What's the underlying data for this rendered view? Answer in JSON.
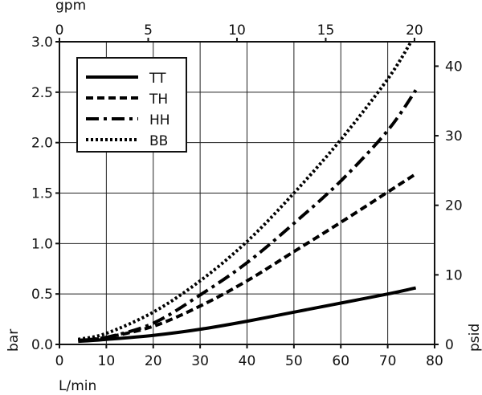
{
  "chart_data": {
    "type": "line",
    "title": "",
    "xlabel": "L/min",
    "ylabel": "bar",
    "x2label": "gpm",
    "y2label": "psid",
    "xlim": [
      0,
      80
    ],
    "ylim": [
      0,
      3.0
    ],
    "x2lim": [
      0,
      21.134
    ],
    "y2lim": [
      0,
      43.51
    ],
    "xticks": [
      0,
      10,
      20,
      30,
      40,
      50,
      60,
      70,
      80
    ],
    "yticks": [
      0.0,
      0.5,
      1.0,
      1.5,
      2.0,
      2.5,
      3.0
    ],
    "x2ticks": [
      0,
      5,
      10,
      15,
      20
    ],
    "y2ticks": [
      0,
      10,
      20,
      30,
      40
    ],
    "xtick_labels": [
      "0",
      "10",
      "20",
      "30",
      "40",
      "50",
      "60",
      "70",
      "80"
    ],
    "ytick_labels": [
      "0.0",
      "0.5",
      "1.0",
      "1.5",
      "2.0",
      "2.5",
      "3.0"
    ],
    "x2tick_labels": [
      "0",
      "5",
      "10",
      "15",
      "20"
    ],
    "y2tick_labels": [
      "0",
      "10",
      "20",
      "30",
      "40"
    ],
    "grid": true,
    "legend_position": "top-left",
    "series": [
      {
        "name": "TT",
        "style": "solid",
        "x": [
          4,
          10,
          20,
          30,
          40,
          50,
          60,
          70,
          76
        ],
        "y": [
          0.03,
          0.05,
          0.09,
          0.15,
          0.23,
          0.32,
          0.41,
          0.5,
          0.56
        ]
      },
      {
        "name": "TH",
        "style": "dashed",
        "x": [
          4,
          10,
          20,
          30,
          40,
          50,
          60,
          70,
          76
        ],
        "y": [
          0.04,
          0.07,
          0.18,
          0.38,
          0.63,
          0.92,
          1.21,
          1.51,
          1.69
        ]
      },
      {
        "name": "HH",
        "style": "dashdot",
        "x": [
          4,
          10,
          20,
          30,
          40,
          50,
          60,
          70,
          76
        ],
        "y": [
          0.04,
          0.07,
          0.21,
          0.49,
          0.81,
          1.2,
          1.62,
          2.12,
          2.52
        ]
      },
      {
        "name": "BB",
        "style": "dotted",
        "x": [
          4,
          10,
          20,
          30,
          40,
          50,
          60,
          70,
          75
        ],
        "y": [
          0.05,
          0.11,
          0.32,
          0.63,
          1.02,
          1.5,
          2.03,
          2.63,
          3.0
        ]
      }
    ]
  }
}
